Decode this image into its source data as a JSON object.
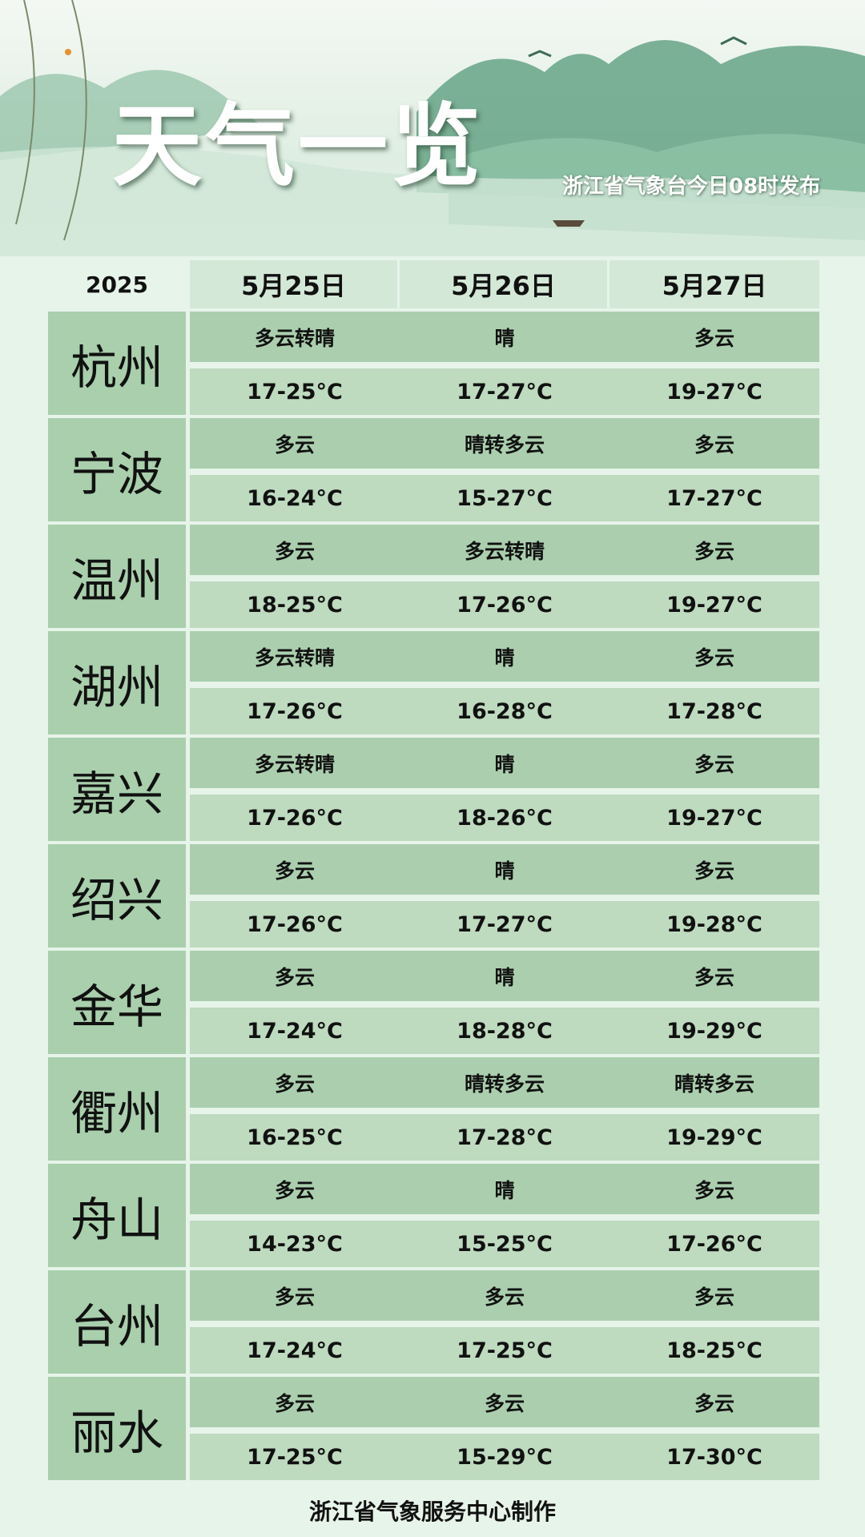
{
  "header": {
    "title": "天气一览",
    "subtitle": "浙江省气象台今日08时发布",
    "year": "2025",
    "dates": [
      "5月25日",
      "5月26日",
      "5月27日"
    ]
  },
  "cities": [
    {
      "name": "杭州",
      "weather": [
        "多云转晴",
        "晴",
        "多云"
      ],
      "temp": [
        "17-25°C",
        "17-27°C",
        "19-27°C"
      ]
    },
    {
      "name": "宁波",
      "weather": [
        "多云",
        "晴转多云",
        "多云"
      ],
      "temp": [
        "16-24°C",
        "15-27°C",
        "17-27°C"
      ]
    },
    {
      "name": "温州",
      "weather": [
        "多云",
        "多云转晴",
        "多云"
      ],
      "temp": [
        "18-25°C",
        "17-26°C",
        "19-27°C"
      ]
    },
    {
      "name": "湖州",
      "weather": [
        "多云转晴",
        "晴",
        "多云"
      ],
      "temp": [
        "17-26°C",
        "16-28°C",
        "17-28°C"
      ]
    },
    {
      "name": "嘉兴",
      "weather": [
        "多云转晴",
        "晴",
        "多云"
      ],
      "temp": [
        "17-26°C",
        "18-26°C",
        "19-27°C"
      ]
    },
    {
      "name": "绍兴",
      "weather": [
        "多云",
        "晴",
        "多云"
      ],
      "temp": [
        "17-26°C",
        "17-27°C",
        "19-28°C"
      ]
    },
    {
      "name": "金华",
      "weather": [
        "多云",
        "晴",
        "多云"
      ],
      "temp": [
        "17-24°C",
        "18-28°C",
        "19-29°C"
      ]
    },
    {
      "name": "衢州",
      "weather": [
        "多云",
        "晴转多云",
        "晴转多云"
      ],
      "temp": [
        "16-25°C",
        "17-28°C",
        "19-29°C"
      ]
    },
    {
      "name": "舟山",
      "weather": [
        "多云",
        "晴",
        "多云"
      ],
      "temp": [
        "14-23°C",
        "15-25°C",
        "17-26°C"
      ]
    },
    {
      "name": "台州",
      "weather": [
        "多云",
        "多云",
        "多云"
      ],
      "temp": [
        "17-24°C",
        "17-25°C",
        "18-25°C"
      ]
    },
    {
      "name": "丽水",
      "weather": [
        "多云",
        "多云",
        "多云"
      ],
      "temp": [
        "17-25°C",
        "15-29°C",
        "17-30°C"
      ]
    }
  ],
  "footer": "浙江省气象服务中心制作",
  "colors": {
    "background": "#e7f4ea",
    "weather_row": "#abcfae",
    "temp_row": "#bedabf",
    "city_cell": "#a9cfac"
  }
}
